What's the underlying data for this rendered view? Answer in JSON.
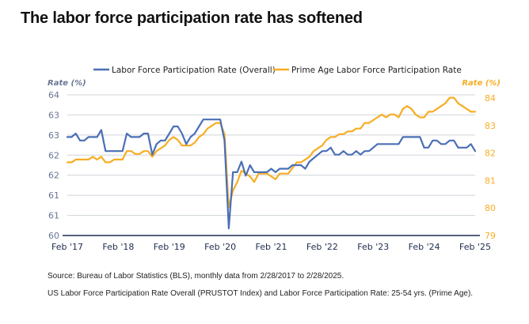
{
  "page": {
    "title": "The labor force participation rate has softened",
    "source_note": "Source: Bureau of Labor Statistics (BLS), monthly data from 2/28/2017 to 2/28/2025.",
    "series_note": "US Labor Force Participation Rate Overall (PRUSTOT Index) and Labor Force Participation Rate: 25-54 yrs. (Prime Age)."
  },
  "chart_data": {
    "type": "line",
    "title": "The labor force participation rate has softened",
    "x_tick_labels": [
      "Feb '17",
      "Feb '18",
      "Feb '19",
      "Feb '20",
      "Feb '21",
      "Feb '22",
      "Feb '23",
      "Feb '24",
      "Feb '25"
    ],
    "y_left_label": "Rate (%)",
    "y_right_label": "Rate (%)",
    "y_left_ticks": [
      "64",
      "63",
      "63",
      "62",
      "62",
      "61",
      "61",
      "60"
    ],
    "y_right_ticks": [
      "84",
      "83",
      "82",
      "81",
      "80",
      "79"
    ],
    "y_left_range": [
      60,
      64
    ],
    "y_right_range": [
      79,
      84
    ],
    "x_range_months": [
      0,
      96
    ],
    "legend_position": "top",
    "grid": "horizontal",
    "colors": {
      "overall": "#4a6fb5",
      "prime_age": "#f7ad23",
      "grid": "#cfd4da",
      "axis": "#1f2d4e",
      "right_axis_text": "#f7ad23",
      "left_axis_text": "#6a7694"
    },
    "series": [
      {
        "name": "Labor Force Participation Rate (Overall)",
        "axis": "left",
        "points": [
          [
            0,
            62.8
          ],
          [
            1,
            62.8
          ],
          [
            2,
            62.9
          ],
          [
            3,
            62.7
          ],
          [
            4,
            62.7
          ],
          [
            5,
            62.8
          ],
          [
            6,
            62.8
          ],
          [
            7,
            62.8
          ],
          [
            8,
            63.0
          ],
          [
            9,
            62.4
          ],
          [
            10,
            62.4
          ],
          [
            11,
            62.4
          ],
          [
            12,
            62.4
          ],
          [
            13,
            62.4
          ],
          [
            14,
            62.9
          ],
          [
            15,
            62.8
          ],
          [
            16,
            62.8
          ],
          [
            17,
            62.8
          ],
          [
            18,
            62.9
          ],
          [
            19,
            62.9
          ],
          [
            20,
            62.3
          ],
          [
            21,
            62.6
          ],
          [
            22,
            62.7
          ],
          [
            23,
            62.7
          ],
          [
            24,
            62.9
          ],
          [
            25,
            63.1
          ],
          [
            26,
            63.1
          ],
          [
            27,
            62.9
          ],
          [
            28,
            62.6
          ],
          [
            29,
            62.8
          ],
          [
            30,
            62.9
          ],
          [
            31,
            63.1
          ],
          [
            32,
            63.3
          ],
          [
            33,
            63.3
          ],
          [
            34,
            63.3
          ],
          [
            35,
            63.3
          ],
          [
            36,
            63.3
          ],
          [
            37,
            62.7
          ],
          [
            38,
            60.2
          ],
          [
            39,
            61.8
          ],
          [
            40,
            61.8
          ],
          [
            41,
            62.1
          ],
          [
            42,
            61.7
          ],
          [
            43,
            62.0
          ],
          [
            44,
            61.8
          ],
          [
            45,
            61.8
          ],
          [
            46,
            61.8
          ],
          [
            47,
            61.8
          ],
          [
            48,
            61.9
          ],
          [
            49,
            61.8
          ],
          [
            50,
            61.9
          ],
          [
            51,
            61.9
          ],
          [
            52,
            61.9
          ],
          [
            53,
            62.0
          ],
          [
            54,
            62.0
          ],
          [
            55,
            62.0
          ],
          [
            56,
            61.9
          ],
          [
            57,
            62.1
          ],
          [
            58,
            62.2
          ],
          [
            59,
            62.3
          ],
          [
            60,
            62.4
          ],
          [
            61,
            62.4
          ],
          [
            62,
            62.5
          ],
          [
            63,
            62.3
          ],
          [
            64,
            62.3
          ],
          [
            65,
            62.4
          ],
          [
            66,
            62.3
          ],
          [
            67,
            62.3
          ],
          [
            68,
            62.4
          ],
          [
            69,
            62.3
          ],
          [
            70,
            62.4
          ],
          [
            71,
            62.4
          ],
          [
            72,
            62.5
          ],
          [
            73,
            62.6
          ],
          [
            74,
            62.6
          ],
          [
            75,
            62.6
          ],
          [
            76,
            62.6
          ],
          [
            77,
            62.6
          ],
          [
            78,
            62.6
          ],
          [
            79,
            62.8
          ],
          [
            80,
            62.8
          ],
          [
            81,
            62.8
          ],
          [
            82,
            62.8
          ],
          [
            83,
            62.8
          ],
          [
            84,
            62.5
          ],
          [
            85,
            62.5
          ],
          [
            86,
            62.7
          ],
          [
            87,
            62.7
          ],
          [
            88,
            62.6
          ],
          [
            89,
            62.6
          ],
          [
            90,
            62.7
          ],
          [
            91,
            62.7
          ],
          [
            92,
            62.5
          ],
          [
            93,
            62.5
          ],
          [
            94,
            62.5
          ],
          [
            95,
            62.6
          ],
          [
            96,
            62.4
          ]
        ]
      },
      {
        "name": "Prime Age Labor Force Participation Rate",
        "axis": "right",
        "points": [
          [
            0,
            81.6
          ],
          [
            1,
            81.6
          ],
          [
            2,
            81.7
          ],
          [
            3,
            81.7
          ],
          [
            4,
            81.7
          ],
          [
            5,
            81.7
          ],
          [
            6,
            81.8
          ],
          [
            7,
            81.7
          ],
          [
            8,
            81.8
          ],
          [
            9,
            81.6
          ],
          [
            10,
            81.6
          ],
          [
            11,
            81.7
          ],
          [
            12,
            81.7
          ],
          [
            13,
            81.7
          ],
          [
            14,
            82.0
          ],
          [
            15,
            82.0
          ],
          [
            16,
            81.9
          ],
          [
            17,
            81.9
          ],
          [
            18,
            82.0
          ],
          [
            19,
            82.0
          ],
          [
            20,
            81.8
          ],
          [
            21,
            82.0
          ],
          [
            22,
            82.1
          ],
          [
            23,
            82.2
          ],
          [
            24,
            82.4
          ],
          [
            25,
            82.5
          ],
          [
            26,
            82.4
          ],
          [
            27,
            82.2
          ],
          [
            28,
            82.2
          ],
          [
            29,
            82.2
          ],
          [
            30,
            82.3
          ],
          [
            31,
            82.5
          ],
          [
            32,
            82.6
          ],
          [
            33,
            82.8
          ],
          [
            34,
            82.9
          ],
          [
            35,
            83.0
          ],
          [
            36,
            83.0
          ],
          [
            37,
            82.6
          ],
          [
            38,
            80.0
          ],
          [
            39,
            80.6
          ],
          [
            40,
            80.9
          ],
          [
            41,
            81.3
          ],
          [
            42,
            81.2
          ],
          [
            43,
            81.1
          ],
          [
            44,
            80.9
          ],
          [
            45,
            81.2
          ],
          [
            46,
            81.2
          ],
          [
            47,
            81.2
          ],
          [
            48,
            81.1
          ],
          [
            49,
            81.0
          ],
          [
            50,
            81.2
          ],
          [
            51,
            81.2
          ],
          [
            52,
            81.2
          ],
          [
            53,
            81.4
          ],
          [
            54,
            81.6
          ],
          [
            55,
            81.6
          ],
          [
            56,
            81.7
          ],
          [
            57,
            81.8
          ],
          [
            58,
            82.0
          ],
          [
            59,
            82.1
          ],
          [
            60,
            82.2
          ],
          [
            61,
            82.4
          ],
          [
            62,
            82.5
          ],
          [
            63,
            82.5
          ],
          [
            64,
            82.6
          ],
          [
            65,
            82.6
          ],
          [
            66,
            82.7
          ],
          [
            67,
            82.7
          ],
          [
            68,
            82.8
          ],
          [
            69,
            82.8
          ],
          [
            70,
            83.0
          ],
          [
            71,
            83.0
          ],
          [
            72,
            83.1
          ],
          [
            73,
            83.2
          ],
          [
            74,
            83.3
          ],
          [
            75,
            83.2
          ],
          [
            76,
            83.3
          ],
          [
            77,
            83.3
          ],
          [
            78,
            83.2
          ],
          [
            79,
            83.5
          ],
          [
            80,
            83.6
          ],
          [
            81,
            83.5
          ],
          [
            82,
            83.3
          ],
          [
            83,
            83.2
          ],
          [
            84,
            83.2
          ],
          [
            85,
            83.4
          ],
          [
            86,
            83.4
          ],
          [
            87,
            83.5
          ],
          [
            88,
            83.6
          ],
          [
            89,
            83.7
          ],
          [
            90,
            83.9
          ],
          [
            91,
            83.9
          ],
          [
            92,
            83.7
          ],
          [
            93,
            83.6
          ],
          [
            94,
            83.5
          ],
          [
            95,
            83.4
          ],
          [
            96,
            83.4
          ]
        ]
      }
    ]
  }
}
